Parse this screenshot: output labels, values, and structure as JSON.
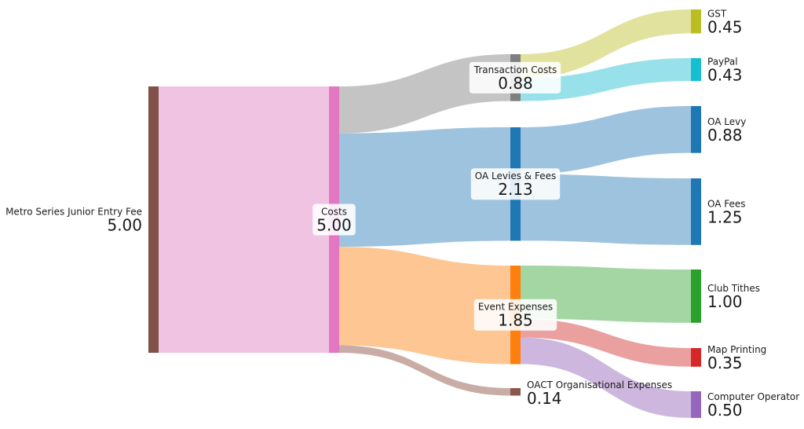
{
  "chart_data": {
    "type": "sankey",
    "nodes": [
      {
        "id": "entry",
        "label": "Metro Series Junior Entry Fee",
        "value_label": "5.00",
        "value": 5.0,
        "color": "#7f5147"
      },
      {
        "id": "costs",
        "label": "Costs",
        "value_label": "5.00",
        "value": 5.0,
        "color": "#e377c2"
      },
      {
        "id": "trans",
        "label": "Transaction Costs",
        "value_label": "0.88",
        "value": 0.88,
        "color": "#7f7f7f"
      },
      {
        "id": "oa",
        "label": "OA Levies & Fees",
        "value_label": "2.13",
        "value": 2.13,
        "color": "#1f77b4"
      },
      {
        "id": "event",
        "label": "Event Expenses",
        "value_label": "1.85",
        "value": 1.85,
        "color": "#ff7f0e"
      },
      {
        "id": "oact",
        "label": "OACT Organisational Expenses",
        "value_label": "0.14",
        "value": 0.14,
        "color": "#8c564b"
      },
      {
        "id": "gst",
        "label": "GST",
        "value_label": "0.45",
        "value": 0.45,
        "color": "#bcbd22"
      },
      {
        "id": "paypal",
        "label": "PayPal",
        "value_label": "0.43",
        "value": 0.43,
        "color": "#17becf"
      },
      {
        "id": "levy",
        "label": "OA Levy",
        "value_label": "0.88",
        "value": 0.88,
        "color": "#1f77b4"
      },
      {
        "id": "fees",
        "label": "OA Fees",
        "value_label": "1.25",
        "value": 1.25,
        "color": "#1f77b4"
      },
      {
        "id": "tithes",
        "label": "Club Tithes",
        "value_label": "1.00",
        "value": 1.0,
        "color": "#2ca02c"
      },
      {
        "id": "map",
        "label": "Map Printing",
        "value_label": "0.35",
        "value": 0.35,
        "color": "#d62728"
      },
      {
        "id": "compop",
        "label": "Computer Operator",
        "value_label": "0.50",
        "value": 0.5,
        "color": "#9467bd"
      }
    ],
    "links": [
      {
        "source": "entry",
        "target": "costs",
        "value": 5.0,
        "color": "#f0c3e3"
      },
      {
        "source": "costs",
        "target": "trans",
        "value": 0.88,
        "color": "#c4c4c4"
      },
      {
        "source": "costs",
        "target": "oa",
        "value": 2.13,
        "color": "#9ec3de"
      },
      {
        "source": "costs",
        "target": "event",
        "value": 1.85,
        "color": "#fec692"
      },
      {
        "source": "costs",
        "target": "oact",
        "value": 0.14,
        "color": "#c9aca6"
      },
      {
        "source": "trans",
        "target": "gst",
        "value": 0.45,
        "color": "#e2e29f"
      },
      {
        "source": "trans",
        "target": "paypal",
        "value": 0.43,
        "color": "#99e1ea"
      },
      {
        "source": "oa",
        "target": "levy",
        "value": 0.88,
        "color": "#9ec3de"
      },
      {
        "source": "oa",
        "target": "fees",
        "value": 1.25,
        "color": "#9ec3de"
      },
      {
        "source": "event",
        "target": "tithes",
        "value": 1.0,
        "color": "#a3d6a2"
      },
      {
        "source": "event",
        "target": "map",
        "value": 0.35,
        "color": "#eba0a0"
      },
      {
        "source": "event",
        "target": "compop",
        "value": 0.5,
        "color": "#cdb7de"
      }
    ]
  }
}
